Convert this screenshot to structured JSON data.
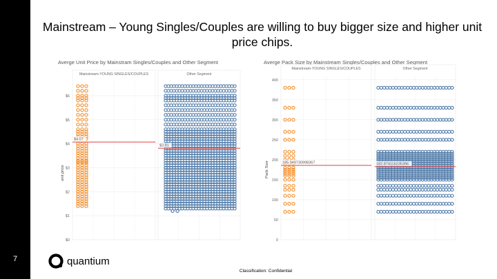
{
  "slide": {
    "number": "7",
    "title": "Mainstream – Young Singles/Couples are willing to buy bigger size and higher unit price chips.",
    "brand": "quantium",
    "classification": "Classification: Confidential"
  },
  "colors": {
    "mainstream": "#f28e2b",
    "other": "#4e79a7",
    "ref_line": "#e15759"
  },
  "chart_data": [
    {
      "type": "scatter",
      "title": "Averge Unit Price by Mainstram Singles/Couples and Other Segment",
      "ylabel": "unit price",
      "ylim": [
        0,
        6.6
      ],
      "yticks": [
        0,
        1,
        2,
        3,
        4,
        5,
        6
      ],
      "ytick_labels": [
        "$0",
        "$1",
        "$2",
        "$3",
        "$4",
        "$5",
        "$6"
      ],
      "panels": [
        "Mainstream-YOUNG SINGLES/COUPLES",
        "Other Segment"
      ],
      "series": [
        {
          "panel": "Mainstream-YOUNG SINGLES/COUPLES",
          "color_key": "mainstream",
          "y_values": [
            1.4,
            1.5,
            1.6,
            1.7,
            1.8,
            1.9,
            2.0,
            2.1,
            2.2,
            2.3,
            2.4,
            2.5,
            2.6,
            2.7,
            2.8,
            2.9,
            3.0,
            3.1,
            3.2,
            3.25,
            3.3,
            3.4,
            3.5,
            3.6,
            3.7,
            3.8,
            3.9,
            4.0,
            4.2,
            4.3,
            4.4,
            4.5,
            4.6,
            4.8,
            5.0,
            5.2,
            5.4,
            5.6,
            5.8,
            5.9,
            6.0,
            6.2,
            6.4
          ]
        },
        {
          "panel": "Other Segment",
          "color_key": "other",
          "y_values": [
            1.3,
            1.4,
            1.5,
            1.6,
            1.7,
            1.8,
            1.9,
            2.0,
            2.1,
            2.2,
            2.3,
            2.4,
            2.5,
            2.6,
            2.7,
            2.8,
            2.9,
            3.0,
            3.1,
            3.2,
            3.3,
            3.4,
            3.5,
            3.6,
            3.7,
            3.8,
            3.9,
            4.0,
            4.1,
            4.2,
            4.3,
            4.4,
            4.5,
            4.6,
            4.8,
            5.0,
            5.2,
            5.4,
            5.6,
            5.8,
            5.9,
            6.0,
            6.2,
            6.4
          ],
          "outliers": [
            1.2
          ]
        }
      ],
      "reference_lines": [
        {
          "panel": "Mainstream-YOUNG SINGLES/COUPLES",
          "value": 4.07,
          "label": "$4.07"
        },
        {
          "panel": "Other Segment",
          "value": 3.81,
          "label": "$3.81"
        }
      ],
      "grid": true
    },
    {
      "type": "scatter",
      "title": "Averge Pack Size by Mainstream Singles/Couples and Other Segment",
      "ylabel": "Pack Size",
      "ylim": [
        0,
        410
      ],
      "yticks": [
        0,
        50,
        100,
        150,
        200,
        250,
        300,
        350,
        400
      ],
      "ytick_labels": [
        "0",
        "50",
        "100",
        "150",
        "200",
        "250",
        "300",
        "350",
        "400"
      ],
      "panels": [
        "Mainstream-YOUNG SINGLES/COUPLES",
        "Other Segment"
      ],
      "series": [
        {
          "panel": "Mainstream-YOUNG SINGLES/COUPLES",
          "color_key": "mainstream",
          "y_values": [
            70,
            90,
            110,
            125,
            135,
            150,
            160,
            165,
            170,
            175,
            180,
            190,
            200,
            210,
            220,
            250,
            270,
            300,
            330,
            380
          ]
        },
        {
          "panel": "Other Segment",
          "color_key": "other",
          "y_values": [
            70,
            90,
            110,
            125,
            135,
            150,
            155,
            160,
            165,
            170,
            175,
            180,
            185,
            190,
            195,
            200,
            205,
            210,
            215,
            220,
            250,
            270,
            300,
            330,
            380
          ]
        }
      ],
      "reference_lines": [
        {
          "panel": "Mainstream-YOUNG SINGLES/COUPLES",
          "value": 185.94,
          "label": "185.949730998367"
        },
        {
          "panel": "Other Segment",
          "value": 182.87,
          "label": "182.874116235396"
        }
      ],
      "grid": true
    }
  ]
}
